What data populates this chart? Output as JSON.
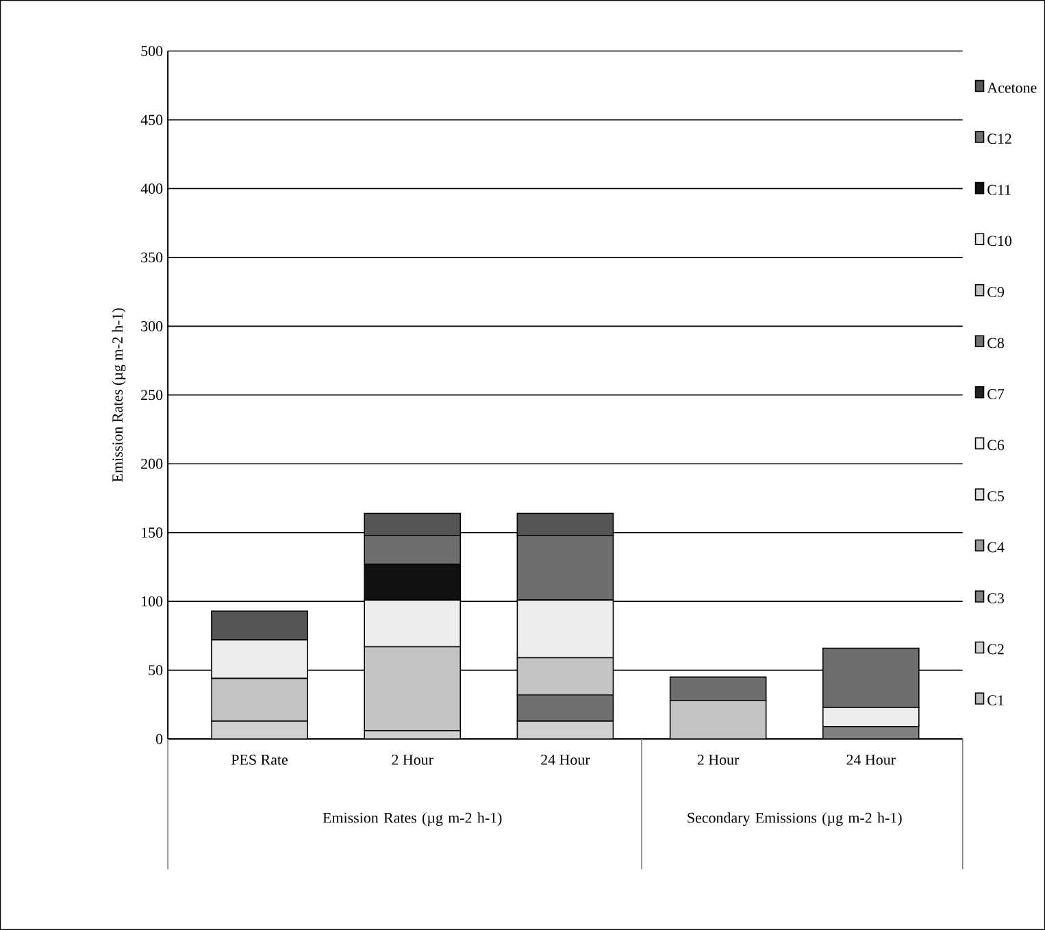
{
  "chart_data": {
    "type": "bar",
    "stacked": true,
    "ylabel": "Emission Rates (µg m-2 h-1)",
    "categories": [
      "PES Rate",
      "2 Hour",
      "24 Hour",
      "2 Hour",
      "24 Hour"
    ],
    "annotations": [
      "Emission Rates (µg m-2 h-1)",
      "Secondary Emissions (µg m-2 h-1)"
    ],
    "ylim": [
      0,
      500
    ],
    "yticks": [
      0,
      50,
      100,
      150,
      200,
      250,
      300,
      350,
      400,
      450,
      500
    ],
    "grid": "y",
    "legend": "right",
    "series": [
      {
        "name": "C1",
        "color": "#bbbbbb",
        "values": [
          0,
          0,
          0,
          0,
          0
        ]
      },
      {
        "name": "C2",
        "color": "#d0d0d0",
        "values": [
          13,
          6,
          13,
          0,
          0
        ]
      },
      {
        "name": "C3",
        "color": "#808080",
        "values": [
          0,
          0,
          0,
          0,
          9
        ]
      },
      {
        "name": "C4",
        "color": "#999999",
        "values": [
          0,
          0,
          0,
          0,
          0
        ]
      },
      {
        "name": "C5",
        "color": "#e0e0e0",
        "values": [
          0,
          0,
          0,
          0,
          0
        ]
      },
      {
        "name": "C6",
        "color": "#f0f0f0",
        "values": [
          0,
          0,
          0,
          0,
          0
        ]
      },
      {
        "name": "C7",
        "color": "#222222",
        "values": [
          0,
          0,
          0,
          0,
          0
        ]
      },
      {
        "name": "C8",
        "color": "#707070",
        "values": [
          0,
          0,
          19,
          0,
          0
        ]
      },
      {
        "name": "C9",
        "color": "#c4c4c4",
        "values": [
          31,
          61,
          27,
          28,
          0
        ]
      },
      {
        "name": "C10",
        "color": "#ececec",
        "values": [
          28,
          34,
          42,
          0,
          14
        ]
      },
      {
        "name": "C11",
        "color": "#111111",
        "values": [
          0,
          26,
          0,
          0,
          0
        ]
      },
      {
        "name": "C12",
        "color": "#6e6e6e",
        "values": [
          0,
          21,
          47,
          17,
          43
        ]
      },
      {
        "name": "Acetone",
        "color": "#555555",
        "values": [
          21,
          16,
          16,
          0,
          0
        ]
      }
    ]
  }
}
